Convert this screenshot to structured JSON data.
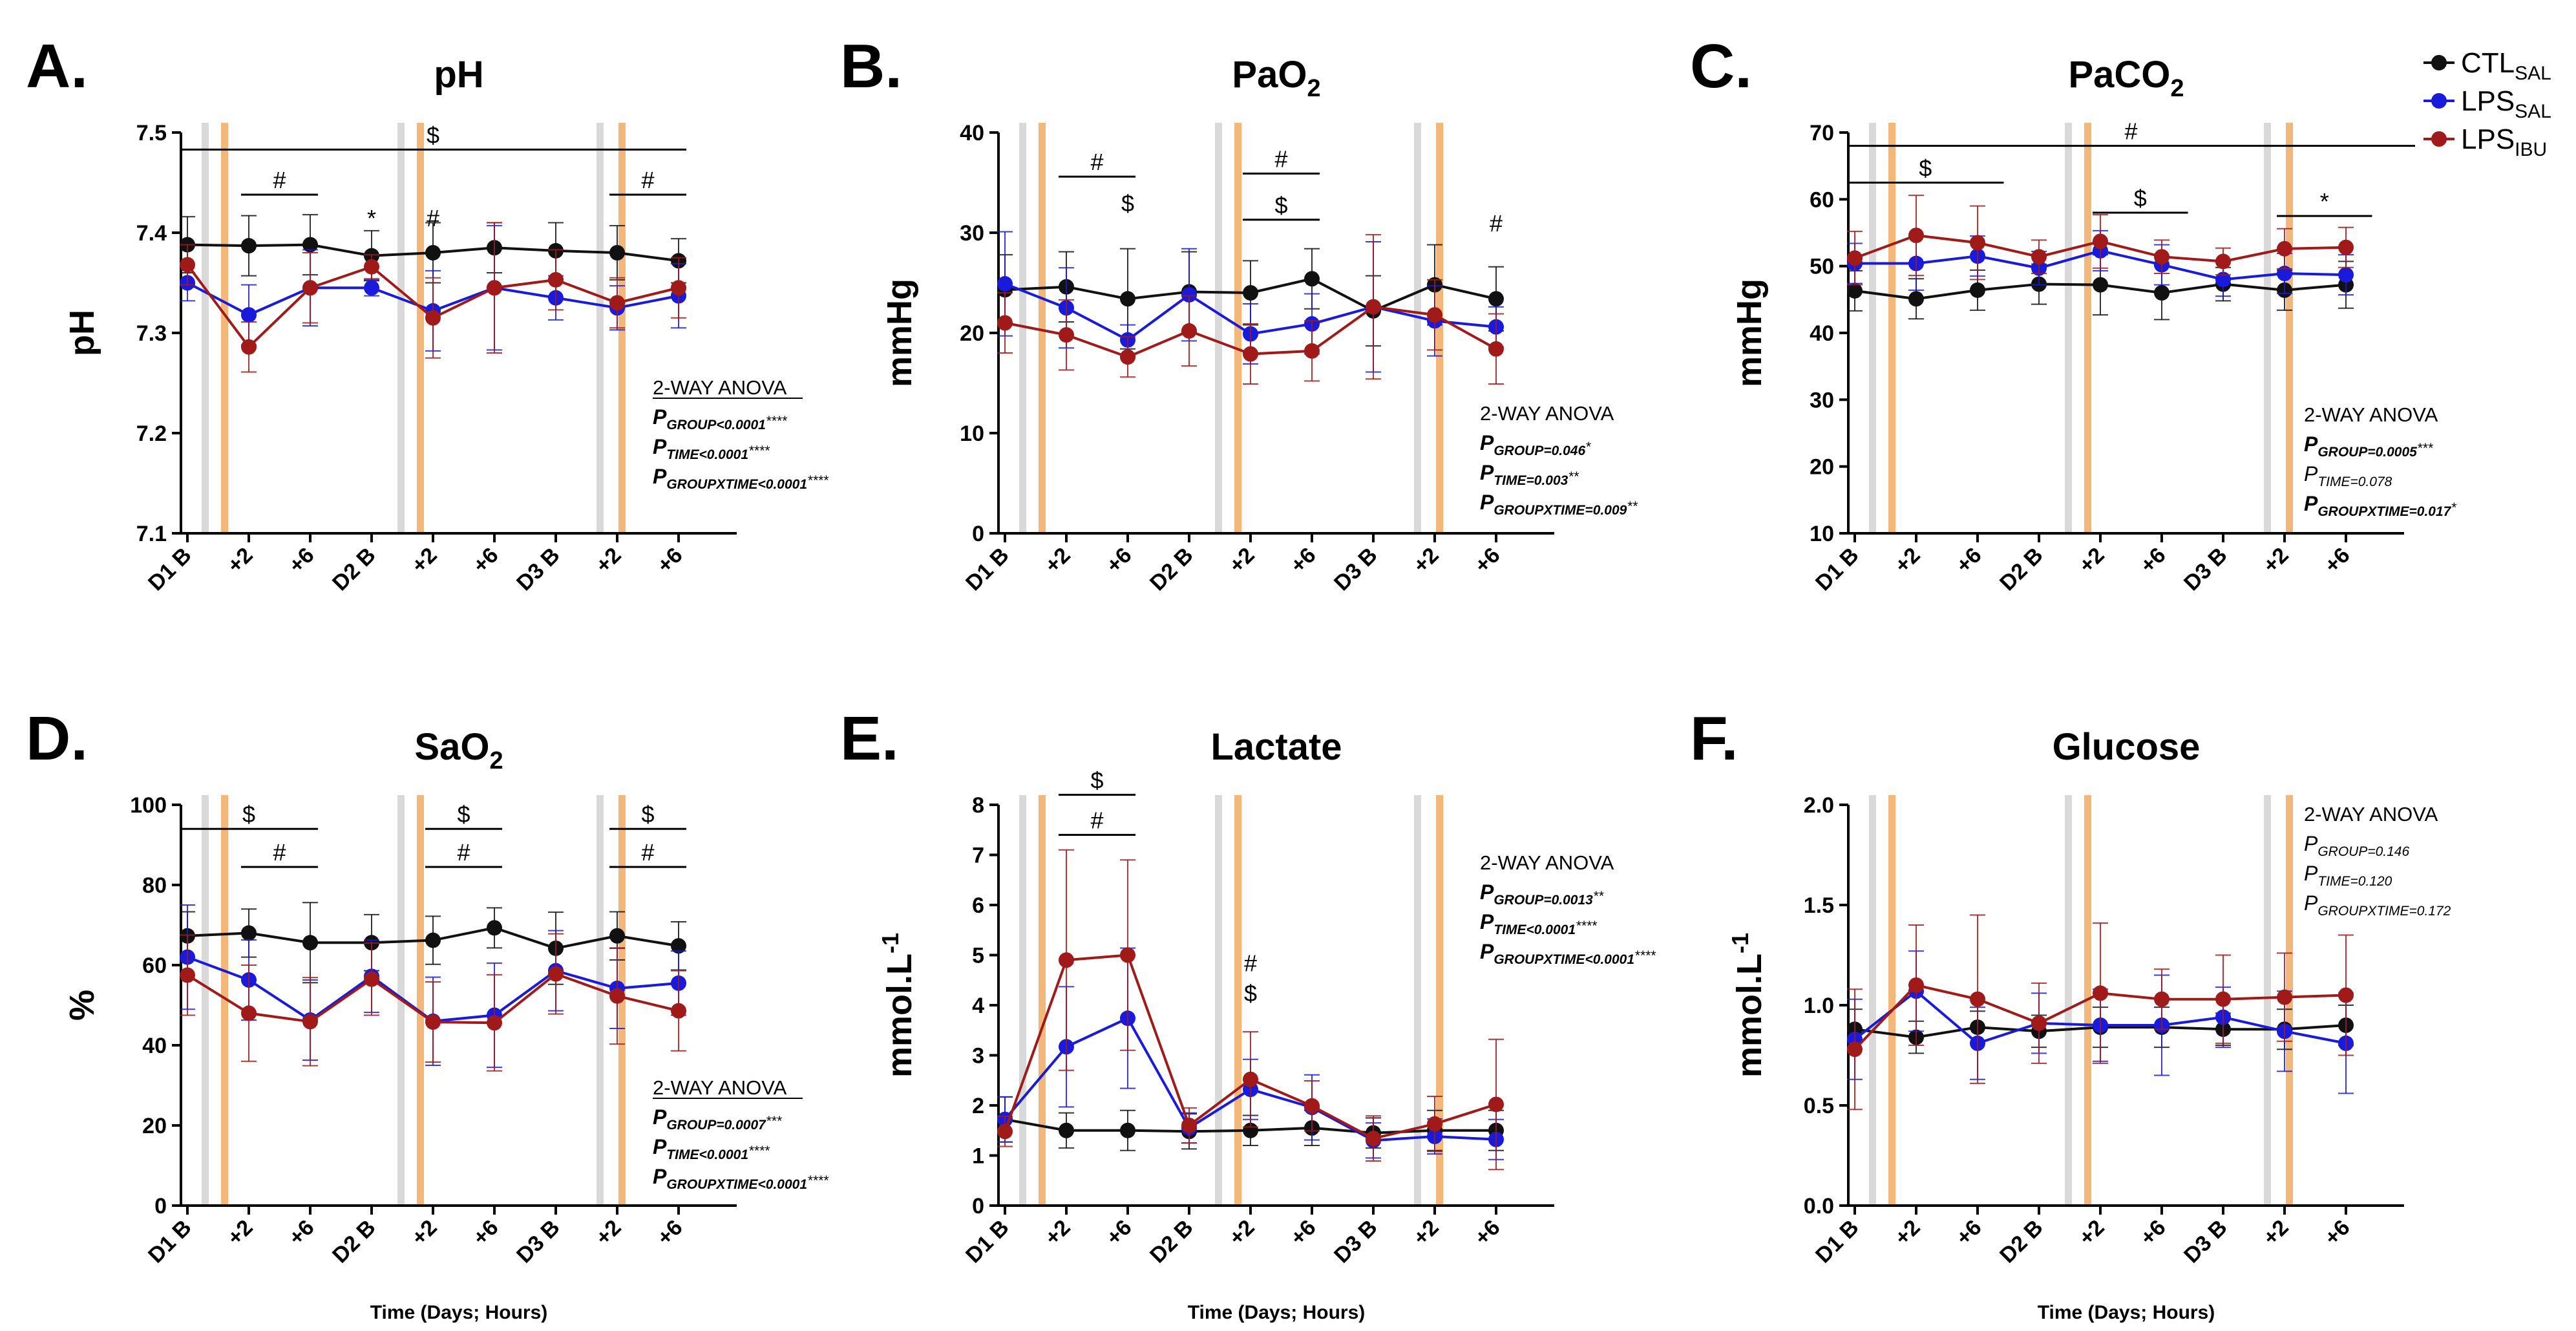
{
  "x_categories": [
    "D1 B",
    "+2",
    "+6",
    "D2 B",
    "+2",
    "+6",
    "D3 B",
    "+2",
    "+6"
  ],
  "x_axis_title": "Time (Days; Hours)",
  "legend": [
    {
      "base": "CTL",
      "sub": "SAL",
      "color": "#111111"
    },
    {
      "base": "LPS",
      "sub": "SAL",
      "color": "#1a1adb"
    },
    {
      "base": "LPS",
      "sub": "IBU",
      "color": "#a01a1a"
    }
  ],
  "colors": {
    "ctl": "#111111",
    "lps_sal": "#1a1adb",
    "lps_ibu": "#a01a1a",
    "gray_bar": "#d9d9d9",
    "orange_bar": "#f4b77a"
  },
  "anova_title": "2-WAY ANOVA",
  "chart_data": [
    {
      "panel_letter": "A.",
      "type": "line",
      "title": {
        "base": "pH",
        "sub": ""
      },
      "ylabel": {
        "base": "pH",
        "sup": ""
      },
      "ylim": [
        7.1,
        7.5
      ],
      "yticks": [
        7.1,
        7.2,
        7.3,
        7.4,
        7.5
      ],
      "decimals": 1,
      "categories": [
        "D1 B",
        "+2",
        "+6",
        "D2 B",
        "+2",
        "+6",
        "D3 B",
        "+2",
        "+6"
      ],
      "series": [
        {
          "name": "CTL SAL",
          "values": [
            7.388,
            7.387,
            7.388,
            7.377,
            7.38,
            7.385,
            7.382,
            7.38,
            7.372
          ],
          "err": [
            0.028,
            0.03,
            0.03,
            0.025,
            0.03,
            0.025,
            0.028,
            0.027,
            0.022
          ]
        },
        {
          "name": "LPS SAL",
          "values": [
            7.35,
            7.318,
            7.345,
            7.345,
            7.322,
            7.345,
            7.335,
            7.325,
            7.337
          ],
          "err": [
            0.018,
            0.03,
            0.038,
            0.008,
            0.04,
            0.062,
            0.022,
            0.022,
            0.032
          ]
        },
        {
          "name": "LPS IBU",
          "values": [
            7.368,
            7.286,
            7.345,
            7.366,
            7.315,
            7.345,
            7.353,
            7.33,
            7.345
          ],
          "err": [
            0.02,
            0.025,
            0.035,
            0.012,
            0.04,
            0.065,
            0.03,
            0.025,
            0.03
          ]
        }
      ],
      "annotations": [
        {
          "text": "$",
          "x1": 0,
          "x2": 8,
          "y": 7.483,
          "line": true
        },
        {
          "text": "#",
          "x1": 1,
          "x2": 2,
          "y": 7.438,
          "line": true
        },
        {
          "text": "#",
          "x1": 7,
          "x2": 8,
          "y": 7.438,
          "line": true
        },
        {
          "text": "*",
          "x1": 3,
          "x2": 3,
          "y": 7.4,
          "line": false
        },
        {
          "text": "#",
          "x1": 4,
          "x2": 4,
          "y": 7.4,
          "line": false
        }
      ],
      "anova": {
        "underline": true,
        "lines": [
          {
            "sub": "GROUP<0.0001",
            "stars": "****",
            "bold": true
          },
          {
            "sub": "TIME<0.0001",
            "stars": "****",
            "bold": true
          },
          {
            "sub": "GROUPXTIME<0.0001",
            "stars": "****",
            "bold": true
          }
        ]
      }
    },
    {
      "panel_letter": "B.",
      "type": "line",
      "title": {
        "base": "PaO",
        "sub": "2"
      },
      "ylabel": {
        "base": "mmHg",
        "sup": ""
      },
      "ylim": [
        0,
        40
      ],
      "yticks": [
        0,
        10,
        20,
        30,
        40
      ],
      "decimals": 0,
      "categories": [
        "D1 B",
        "+2",
        "+6",
        "D2 B",
        "+2",
        "+6",
        "D3 B",
        "+2",
        "+6"
      ],
      "series": [
        {
          "name": "CTL SAL",
          "values": [
            24.3,
            24.6,
            23.4,
            24.1,
            24.0,
            25.4,
            22.2,
            24.8,
            23.4
          ],
          "err": [
            3.5,
            3.5,
            5.0,
            4.0,
            3.2,
            3.0,
            3.5,
            4.0,
            3.2
          ]
        },
        {
          "name": "LPS SAL",
          "values": [
            24.9,
            22.5,
            19.3,
            23.8,
            19.9,
            20.9,
            22.6,
            21.2,
            20.6
          ],
          "err": [
            5.2,
            4.0,
            1.5,
            4.6,
            3.0,
            3.0,
            6.5,
            3.5,
            2.0
          ]
        },
        {
          "name": "LPS IBU",
          "values": [
            21.0,
            19.8,
            17.6,
            20.2,
            17.9,
            18.2,
            22.6,
            21.8,
            18.4
          ],
          "err": [
            3.0,
            3.5,
            2.0,
            3.5,
            3.0,
            3.0,
            7.2,
            3.5,
            3.5
          ]
        }
      ],
      "annotations": [
        {
          "text": "#",
          "x1": 1,
          "x2": 2,
          "y": 35.6,
          "line": true
        },
        {
          "text": "$",
          "x1": 2,
          "x2": 2,
          "y": 31.5,
          "line": false
        },
        {
          "text": "#",
          "x1": 4,
          "x2": 5,
          "y": 35.9,
          "line": true
        },
        {
          "text": "$",
          "x1": 4,
          "x2": 5,
          "y": 31.3,
          "line": true
        },
        {
          "text": "#",
          "x1": 8,
          "x2": 8,
          "y": 29.5,
          "line": false
        }
      ],
      "anova": {
        "underline": false,
        "lines": [
          {
            "sub": "GROUP=0.046",
            "stars": "*",
            "bold": true
          },
          {
            "sub": "TIME=0.003",
            "stars": "**",
            "bold": true
          },
          {
            "sub": "GROUPXTIME=0.009",
            "stars": "**",
            "bold": true
          }
        ]
      }
    },
    {
      "panel_letter": "C.",
      "type": "line",
      "title": {
        "base": "PaCO",
        "sub": "2"
      },
      "ylabel": {
        "base": "mmHg",
        "sup": ""
      },
      "ylim": [
        10,
        70
      ],
      "yticks": [
        10,
        20,
        30,
        40,
        50,
        60,
        70
      ],
      "decimals": 0,
      "categories": [
        "D1 B",
        "+2",
        "+6",
        "D2 B",
        "+2",
        "+6",
        "D3 B",
        "+2",
        "+6"
      ],
      "series": [
        {
          "name": "CTL SAL",
          "values": [
            46.3,
            45.1,
            46.4,
            47.3,
            47.2,
            46.0,
            47.3,
            46.4,
            47.2
          ],
          "err": [
            3.0,
            3.0,
            3.0,
            3.0,
            4.5,
            4.0,
            2.5,
            3.0,
            3.5
          ]
        },
        {
          "name": "LPS SAL",
          "values": [
            50.4,
            50.4,
            51.5,
            49.7,
            52.3,
            50.2,
            48.0,
            48.9,
            48.7
          ],
          "err": [
            3.0,
            4.0,
            3.0,
            2.5,
            3.0,
            3.0,
            2.5,
            3.0,
            3.0
          ]
        },
        {
          "name": "LPS IBU",
          "values": [
            51.2,
            54.6,
            53.5,
            51.4,
            53.7,
            51.4,
            50.7,
            52.6,
            52.8
          ],
          "err": [
            4.0,
            6.0,
            5.5,
            2.5,
            4.0,
            2.5,
            2.0,
            3.0,
            3.0
          ]
        }
      ],
      "annotations": [
        {
          "text": "#",
          "x1": 0,
          "x2": 9,
          "y": 68.0,
          "line": true
        },
        {
          "text": "$",
          "x1": 0,
          "x2": 2.3,
          "y": 62.5,
          "line": true
        },
        {
          "text": "$",
          "x1": 4,
          "x2": 5.3,
          "y": 58.0,
          "line": true
        },
        {
          "text": "*",
          "x1": 7,
          "x2": 8.3,
          "y": 57.5,
          "line": true
        }
      ],
      "anova": {
        "underline": false,
        "lines": [
          {
            "sub": "GROUP=0.0005",
            "stars": "***",
            "bold": true
          },
          {
            "sub": "TIME=0.078",
            "stars": "",
            "bold": false
          },
          {
            "sub": "GROUPXTIME=0.017",
            "stars": "*",
            "bold": true
          }
        ]
      }
    },
    {
      "panel_letter": "D.",
      "type": "line",
      "title": {
        "base": "SaO",
        "sub": "2"
      },
      "ylabel": {
        "base": "%",
        "sup": ""
      },
      "ylim": [
        0,
        100
      ],
      "yticks": [
        0,
        20,
        40,
        60,
        80,
        100
      ],
      "decimals": 0,
      "categories": [
        "D1 B",
        "+2",
        "+6",
        "D2 B",
        "+2",
        "+6",
        "D3 B",
        "+2",
        "+6"
      ],
      "series": [
        {
          "name": "CTL SAL",
          "values": [
            67.3,
            68.0,
            65.6,
            65.6,
            66.2,
            69.3,
            64.2,
            67.3,
            64.8
          ],
          "err": [
            6.0,
            6.0,
            10.0,
            7.0,
            6.0,
            5.0,
            9.0,
            6.0,
            6.0
          ]
        },
        {
          "name": "LPS SAL",
          "values": [
            62.0,
            56.3,
            46.3,
            57.2,
            46.0,
            47.5,
            58.6,
            54.2,
            55.5
          ],
          "err": [
            13.0,
            10.0,
            10.0,
            9.0,
            11.0,
            13.0,
            10.0,
            10.0,
            8.0
          ]
        },
        {
          "name": "LPS IBU",
          "values": [
            57.5,
            48.0,
            45.9,
            56.5,
            45.8,
            45.6,
            57.8,
            52.3,
            48.6
          ],
          "err": [
            10.0,
            12.0,
            11.0,
            9.0,
            10.0,
            12.0,
            10.0,
            12.0,
            10.0
          ]
        }
      ],
      "annotations": [
        {
          "text": "$",
          "x1": 0,
          "x2": 2,
          "y": 94.0,
          "line": true
        },
        {
          "text": "#",
          "x1": 1,
          "x2": 2,
          "y": 84.5,
          "line": true
        },
        {
          "text": "$",
          "x1": 4,
          "x2": 5,
          "y": 94.0,
          "line": true
        },
        {
          "text": "#",
          "x1": 4,
          "x2": 5,
          "y": 84.5,
          "line": true
        },
        {
          "text": "$",
          "x1": 7,
          "x2": 8,
          "y": 94.0,
          "line": true
        },
        {
          "text": "#",
          "x1": 7,
          "x2": 8,
          "y": 84.5,
          "line": true
        }
      ],
      "anova": {
        "underline": true,
        "lines": [
          {
            "sub": "GROUP=0.0007",
            "stars": "***",
            "bold": true
          },
          {
            "sub": "TIME<0.0001",
            "stars": "****",
            "bold": true
          },
          {
            "sub": "GROUPXTIME<0.0001",
            "stars": "****",
            "bold": true
          }
        ]
      }
    },
    {
      "panel_letter": "E.",
      "type": "line",
      "title": {
        "base": "Lactate",
        "sub": ""
      },
      "ylabel": {
        "base": "mmol.L",
        "sup": "-1"
      },
      "ylim": [
        0,
        8
      ],
      "yticks": [
        0,
        1,
        2,
        3,
        4,
        5,
        6,
        7,
        8
      ],
      "decimals": 0,
      "categories": [
        "D1 B",
        "+2",
        "+6",
        "D2 B",
        "+2",
        "+6",
        "D3 B",
        "+2",
        "+6"
      ],
      "series": [
        {
          "name": "CTL SAL",
          "values": [
            1.72,
            1.5,
            1.5,
            1.48,
            1.5,
            1.55,
            1.45,
            1.5,
            1.5
          ],
          "err": [
            0.45,
            0.35,
            0.4,
            0.35,
            0.3,
            0.35,
            0.3,
            0.4,
            0.4
          ]
        },
        {
          "name": "LPS SAL",
          "values": [
            1.72,
            3.17,
            3.74,
            1.55,
            2.32,
            1.96,
            1.3,
            1.38,
            1.32
          ],
          "err": [
            0.45,
            1.2,
            1.4,
            0.3,
            0.6,
            0.65,
            0.35,
            0.35,
            0.4
          ]
        },
        {
          "name": "LPS IBU",
          "values": [
            1.48,
            4.9,
            5.0,
            1.6,
            2.52,
            1.99,
            1.34,
            1.63,
            2.02
          ],
          "err": [
            0.3,
            2.2,
            1.9,
            0.35,
            0.95,
            0.5,
            0.45,
            0.55,
            1.3
          ]
        }
      ],
      "annotations": [
        {
          "text": "$",
          "x1": 1,
          "x2": 2,
          "y": 8.2,
          "line": true
        },
        {
          "text": "#",
          "x1": 1,
          "x2": 2,
          "y": 7.4,
          "line": true
        },
        {
          "text": "#",
          "x1": 4,
          "x2": 4,
          "y": 4.55,
          "line": false
        },
        {
          "text": "$",
          "x1": 4,
          "x2": 4,
          "y": 3.95,
          "line": false
        }
      ],
      "anova": {
        "underline": false,
        "lines": [
          {
            "sub": "GROUP=0.0013",
            "stars": "**",
            "bold": true
          },
          {
            "sub": "TIME<0.0001",
            "stars": "****",
            "bold": true
          },
          {
            "sub": "GROUPXTIME<0.0001",
            "stars": "****",
            "bold": true
          }
        ]
      }
    },
    {
      "panel_letter": "F.",
      "type": "line",
      "title": {
        "base": "Glucose",
        "sub": ""
      },
      "ylabel": {
        "base": "mmol.L",
        "sup": "-1"
      },
      "ylim": [
        0,
        2
      ],
      "yticks": [
        0,
        0.5,
        1.0,
        1.5,
        2.0
      ],
      "decimals": 1,
      "categories": [
        "D1 B",
        "+2",
        "+6",
        "D2 B",
        "+2",
        "+6",
        "D3 B",
        "+2",
        "+6"
      ],
      "series": [
        {
          "name": "CTL SAL",
          "values": [
            0.88,
            0.84,
            0.89,
            0.87,
            0.89,
            0.89,
            0.88,
            0.88,
            0.9
          ],
          "err": [
            0.1,
            0.08,
            0.08,
            0.08,
            0.1,
            0.1,
            0.08,
            0.1,
            0.1
          ]
        },
        {
          "name": "LPS SAL",
          "values": [
            0.83,
            1.07,
            0.81,
            0.91,
            0.9,
            0.9,
            0.94,
            0.87,
            0.81
          ],
          "err": [
            0.2,
            0.2,
            0.18,
            0.15,
            0.18,
            0.25,
            0.15,
            0.2,
            0.25
          ]
        },
        {
          "name": "LPS IBU",
          "values": [
            0.78,
            1.1,
            1.03,
            0.91,
            1.06,
            1.03,
            1.03,
            1.04,
            1.05
          ],
          "err": [
            0.3,
            0.3,
            0.42,
            0.2,
            0.35,
            0.15,
            0.22,
            0.22,
            0.3
          ]
        }
      ],
      "annotations": [],
      "anova": {
        "underline": false,
        "lines": [
          {
            "sub": "GROUP=0.146",
            "stars": "",
            "bold": false
          },
          {
            "sub": "TIME=0.120",
            "stars": "",
            "bold": false
          },
          {
            "sub": "GROUPXTIME=0.172",
            "stars": "",
            "bold": false
          }
        ]
      }
    }
  ]
}
